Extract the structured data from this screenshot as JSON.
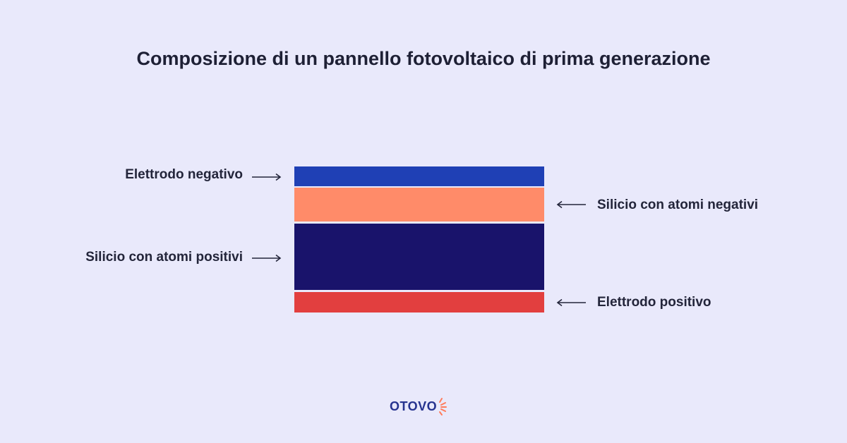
{
  "title": "Composizione di un pannello fotovoltaico di prima generazione",
  "layers": [
    {
      "name": "Elettrodo negativo",
      "color": "#1f40b5"
    },
    {
      "name": "Silicio con atomi negativi",
      "color": "#ff8b69"
    },
    {
      "name": "Silicio con atomi positivi",
      "color": "#19136b"
    },
    {
      "name": "Elettrodo positivo",
      "color": "#e23f3f"
    }
  ],
  "logo": {
    "text": "OTOVO",
    "text_color": "#26338f",
    "accent_color": "#ff7c5c"
  },
  "colors": {
    "background": "#e9e9fb",
    "text": "#23253a"
  }
}
